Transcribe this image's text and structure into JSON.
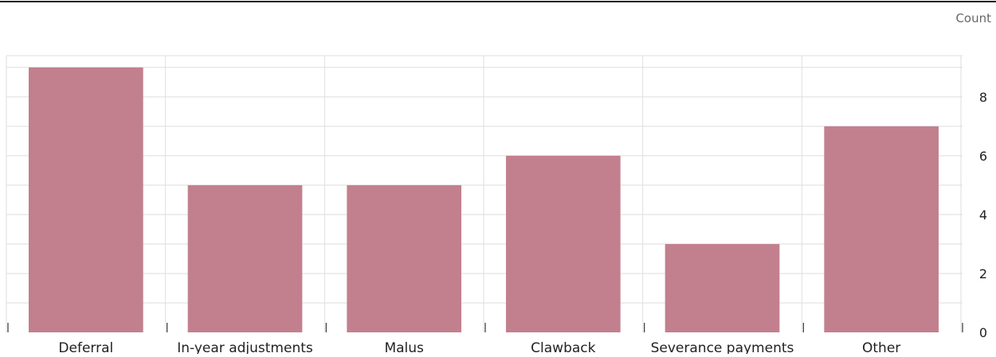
{
  "chart_data": {
    "type": "bar",
    "ylabel": "Count",
    "categories": [
      "Deferral",
      "In-year adjustments",
      "Malus",
      "Clawback",
      "Severance payments",
      "Other"
    ],
    "values": [
      9,
      5,
      5,
      6,
      3,
      7
    ],
    "ylim": [
      0,
      9.4
    ],
    "y_ticks": [
      "0",
      "2",
      "4",
      "6",
      "8"
    ],
    "y_tick_values": [
      0,
      2,
      4,
      6,
      8
    ],
    "y_axis_position": "right",
    "grid": true,
    "bar_color": "#c2808e"
  }
}
